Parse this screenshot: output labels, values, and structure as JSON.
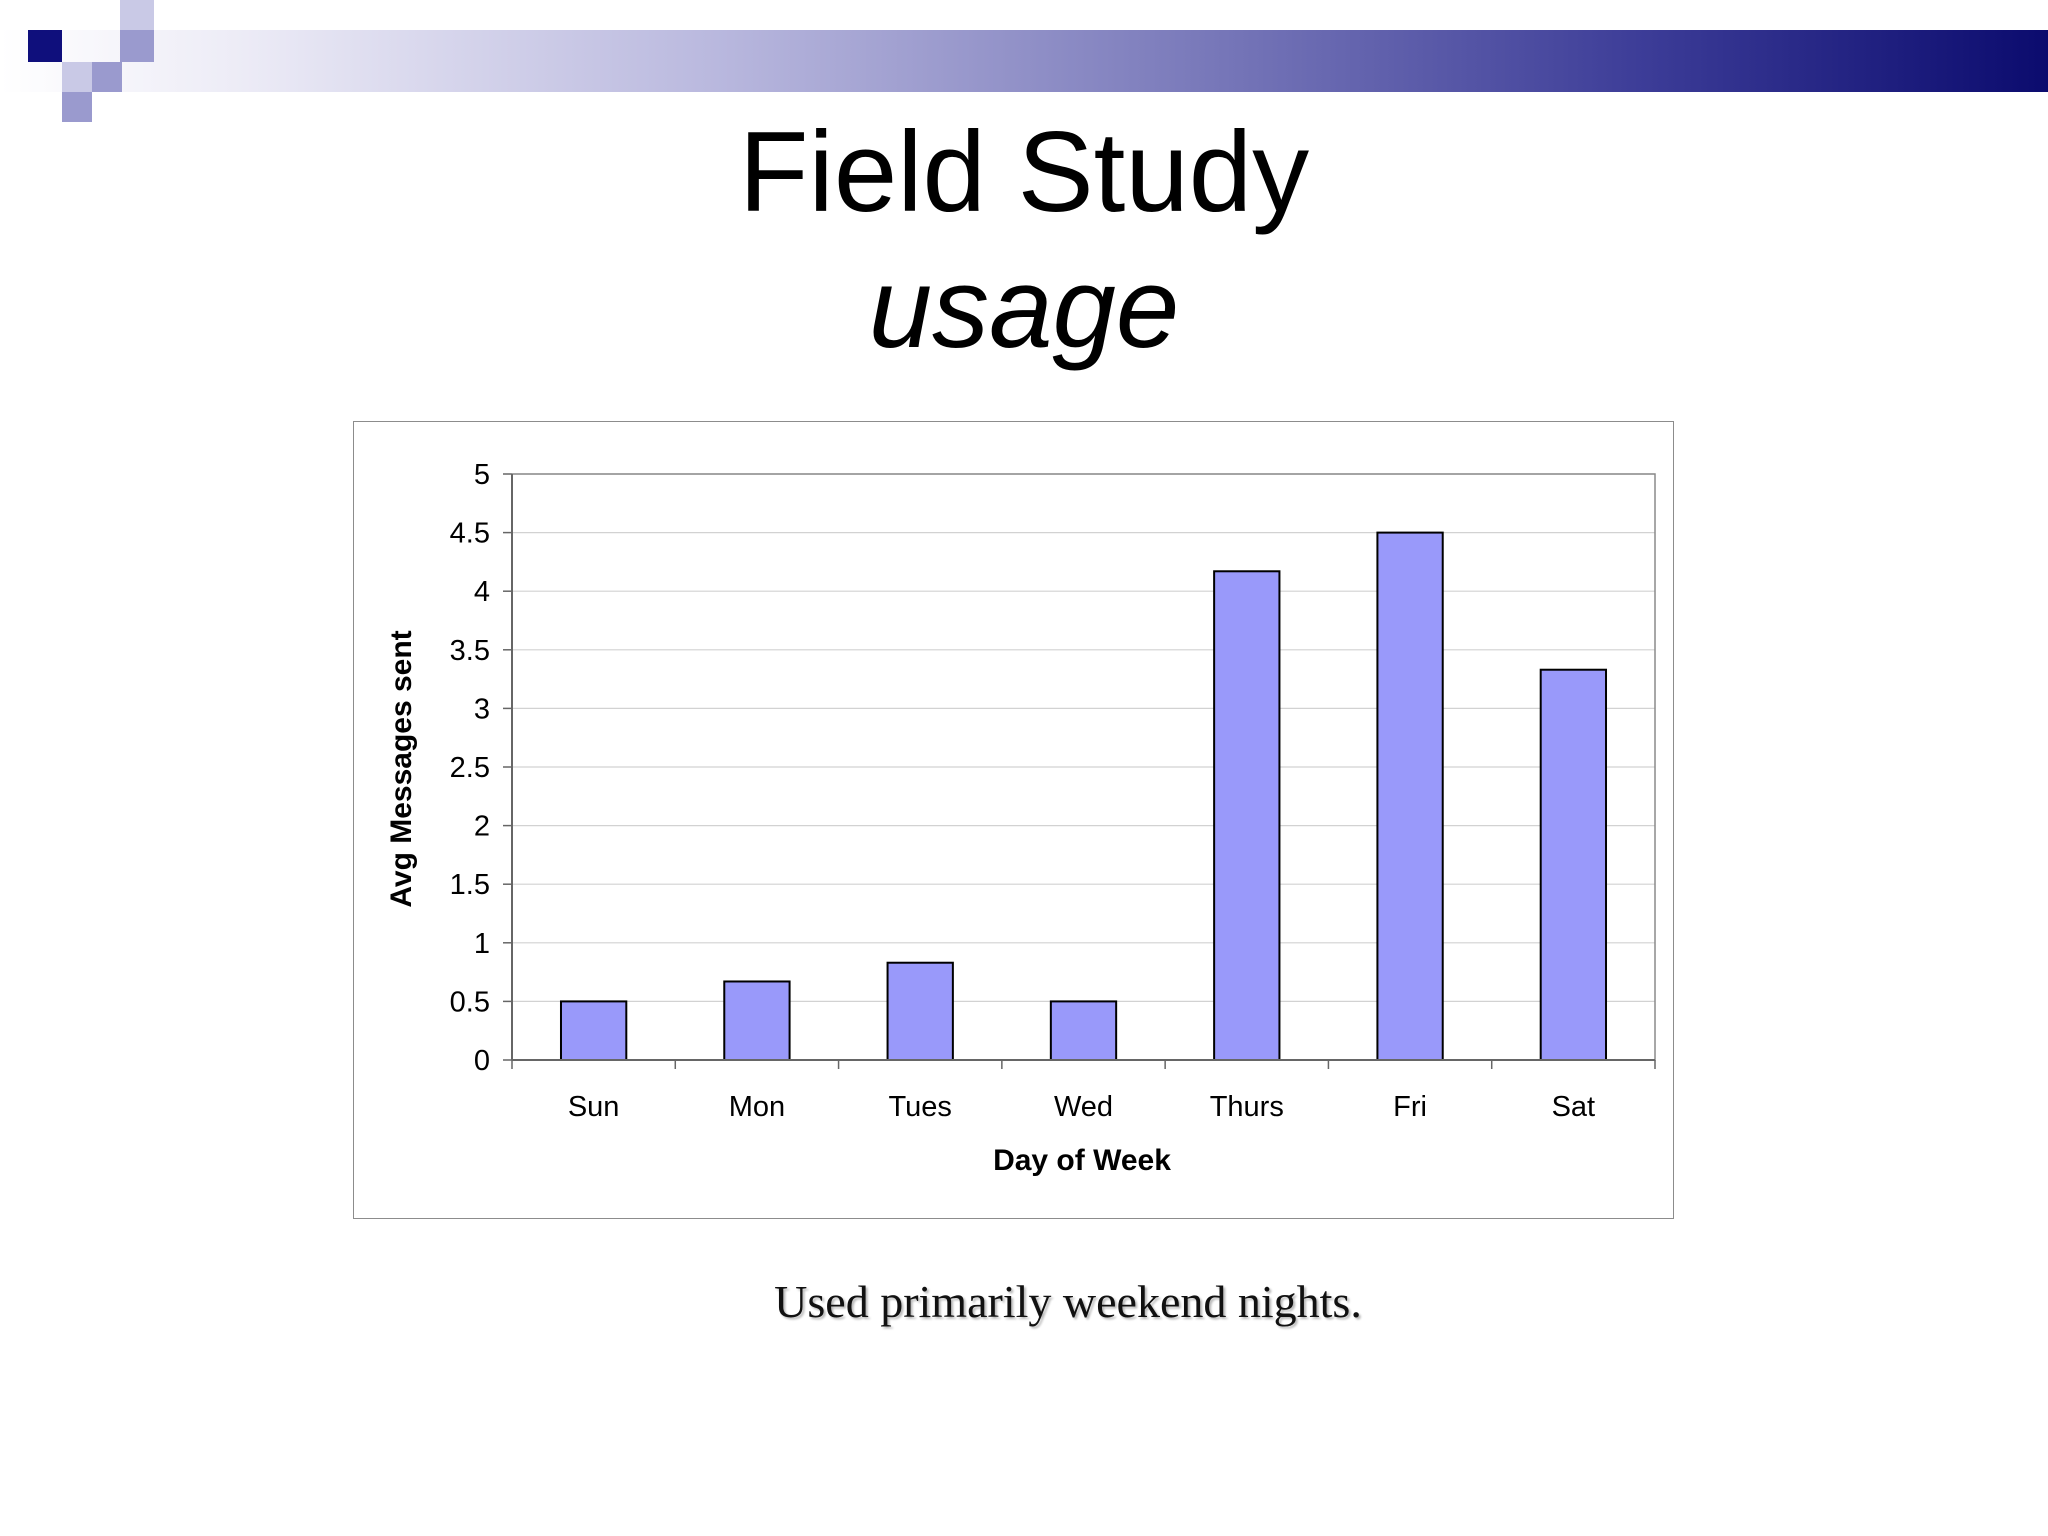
{
  "slide": {
    "title": "Field Study",
    "subtitle": "usage",
    "caption": "Used primarily weekend nights.",
    "colors": {
      "header_dark": "#0b0b6e",
      "header_light": "#ffffff",
      "deco_dark": "#0f0f7c",
      "deco_light": "#9a9ace"
    }
  },
  "chart_data": {
    "type": "bar",
    "categories": [
      "Sun",
      "Mon",
      "Tues",
      "Wed",
      "Thurs",
      "Fri",
      "Sat"
    ],
    "values": [
      0.5,
      0.67,
      0.83,
      0.5,
      4.17,
      4.5,
      3.33
    ],
    "xlabel": "Day of Week",
    "ylabel": "Avg Messages sent",
    "ylim": [
      0,
      5
    ],
    "yticks": [
      "0",
      "0.5",
      "1",
      "1.5",
      "2",
      "2.5",
      "3",
      "3.5",
      "4",
      "4.5",
      "5"
    ],
    "grid": true,
    "legend": "none",
    "bar_color": "#9999fa",
    "bar_edge_color": "#000000"
  }
}
